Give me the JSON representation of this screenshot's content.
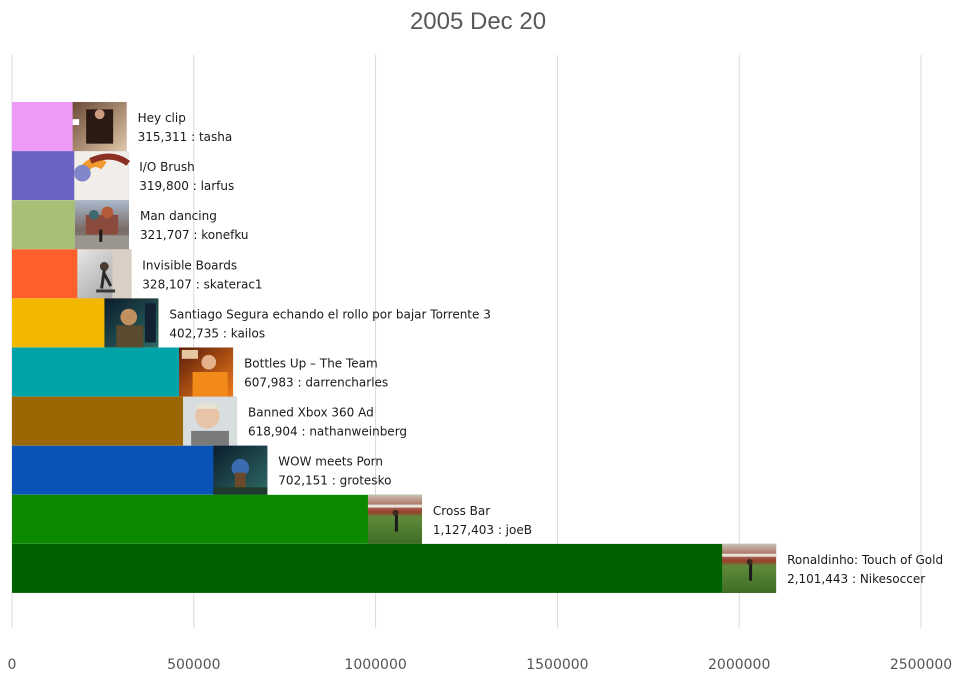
{
  "chart_data": {
    "type": "bar",
    "orientation": "horizontal",
    "title": "2005 Dec 20",
    "xlabel": "",
    "ylabel": "",
    "xlim": [
      0,
      2500000
    ],
    "xticks": [
      "0",
      "500000",
      "1000000",
      "1500000",
      "2000000",
      "2500000"
    ],
    "xtick_values": [
      0,
      500000,
      1000000,
      1500000,
      2000000,
      2500000
    ],
    "grid": true,
    "legend": "none",
    "bars": [
      {
        "name": "Hey clip",
        "value": 315311,
        "value_text": "315,311",
        "user": "tasha",
        "color": "#ee99f5",
        "thumb": "person-on-couch"
      },
      {
        "name": "I/O Brush",
        "value": 319800,
        "value_text": "319,800",
        "user": "larfus",
        "color": "#6b63c4",
        "thumb": "paint-brush-swirl"
      },
      {
        "name": "Man dancing",
        "value": 321707,
        "value_text": "321,707",
        "user": "konefku",
        "color": "#a8bf78",
        "thumb": "cathedral-square"
      },
      {
        "name": "Invisible Boards",
        "value": 328107,
        "value_text": "328,107",
        "user": "skaterac1",
        "color": "#ff5f2a",
        "thumb": "skater-jump"
      },
      {
        "name": "Santiago Segura echando el rollo por bajar Torrente 3",
        "value": 402735,
        "value_text": "402,735",
        "user": "kailos",
        "color": "#f2b800",
        "thumb": "man-talking"
      },
      {
        "name": "Bottles Up – The Team",
        "value": 607983,
        "value_text": "607,983",
        "user": "darrencharles",
        "color": "#00a3a8",
        "thumb": "orange-shirt"
      },
      {
        "name": "Banned Xbox 360 Ad",
        "value": 618904,
        "value_text": "618,904",
        "user": "nathanweinberg",
        "color": "#9c6600",
        "thumb": "boy-pointing"
      },
      {
        "name": "WOW meets Porn",
        "value": 702151,
        "value_text": "702,151",
        "user": "grotesko",
        "color": "#0a52b5",
        "thumb": "game-scene"
      },
      {
        "name": "Cross Bar",
        "value": 1127403,
        "value_text": "1,127,403",
        "user": "joeB",
        "color": "#0b8a00",
        "thumb": "soccer-field"
      },
      {
        "name": "Ronaldinho: Touch of Gold",
        "value": 2101443,
        "value_text": "2,101,443",
        "user": "Nikesoccer",
        "color": "#006100",
        "thumb": "soccer-field"
      }
    ]
  }
}
